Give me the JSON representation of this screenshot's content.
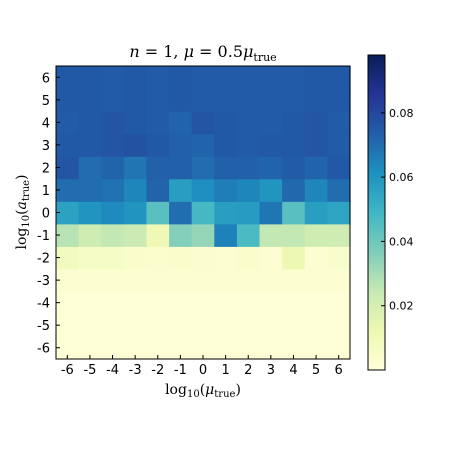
{
  "chart_data": {
    "type": "heatmap",
    "title_parts": {
      "n_sym": "n",
      "n_eq": " = 1,  ",
      "mu_sym": "μ",
      "mu_eq": " = 0.5",
      "mu_sym2": "μ",
      "mu_sub": "true"
    },
    "xlabel_parts": {
      "pre": "log",
      "sub10": "10",
      "open": "(",
      "sym": "μ",
      "sub": "true",
      "close": ")"
    },
    "ylabel_parts": {
      "pre": "log",
      "sub10": "10",
      "open": "(",
      "sym": "a",
      "sub": "true",
      "close": ")"
    },
    "x_categories": [
      "-6",
      "-5",
      "-4",
      "-3",
      "-2",
      "-1",
      "0",
      "1",
      "2",
      "3",
      "4",
      "5",
      "6"
    ],
    "y_categories": [
      "-6",
      "-5",
      "-4",
      "-3",
      "-2",
      "-1",
      "0",
      "1",
      "2",
      "3",
      "4",
      "5",
      "6"
    ],
    "colorbar": {
      "min": 0.0,
      "max": 0.098,
      "ticks": [
        0.02,
        0.04,
        0.06,
        0.08
      ],
      "tick_labels": [
        "0.02",
        "0.04",
        "0.06",
        "0.08"
      ],
      "colormap": "YlGnBu"
    },
    "values_rows_from_y_minus6_to_plus6": [
      [
        0.001,
        0.001,
        0.001,
        0.001,
        0.001,
        0.001,
        0.001,
        0.001,
        0.001,
        0.001,
        0.001,
        0.001,
        0.001
      ],
      [
        0.001,
        0.001,
        0.001,
        0.001,
        0.001,
        0.001,
        0.001,
        0.001,
        0.001,
        0.001,
        0.001,
        0.001,
        0.001
      ],
      [
        0.001,
        0.001,
        0.001,
        0.001,
        0.001,
        0.001,
        0.001,
        0.001,
        0.001,
        0.001,
        0.001,
        0.001,
        0.001
      ],
      [
        0.002,
        0.002,
        0.002,
        0.002,
        0.002,
        0.002,
        0.002,
        0.002,
        0.002,
        0.002,
        0.002,
        0.002,
        0.002
      ],
      [
        0.008,
        0.006,
        0.006,
        0.004,
        0.003,
        0.004,
        0.003,
        0.002,
        0.004,
        0.002,
        0.012,
        0.002,
        0.004
      ],
      [
        0.027,
        0.022,
        0.025,
        0.023,
        0.011,
        0.036,
        0.033,
        0.065,
        0.047,
        0.025,
        0.025,
        0.022,
        0.022
      ],
      [
        0.056,
        0.06,
        0.063,
        0.06,
        0.044,
        0.07,
        0.048,
        0.057,
        0.058,
        0.068,
        0.044,
        0.057,
        0.055
      ],
      [
        0.07,
        0.07,
        0.069,
        0.064,
        0.072,
        0.057,
        0.062,
        0.066,
        0.064,
        0.06,
        0.071,
        0.064,
        0.07
      ],
      [
        0.076,
        0.07,
        0.072,
        0.068,
        0.073,
        0.073,
        0.07,
        0.073,
        0.073,
        0.072,
        0.074,
        0.072,
        0.075
      ],
      [
        0.075,
        0.075,
        0.076,
        0.077,
        0.075,
        0.073,
        0.072,
        0.075,
        0.074,
        0.075,
        0.075,
        0.076,
        0.074
      ],
      [
        0.074,
        0.075,
        0.076,
        0.075,
        0.074,
        0.072,
        0.076,
        0.075,
        0.074,
        0.074,
        0.075,
        0.076,
        0.074
      ],
      [
        0.075,
        0.075,
        0.074,
        0.075,
        0.074,
        0.075,
        0.074,
        0.074,
        0.074,
        0.074,
        0.074,
        0.075,
        0.075
      ],
      [
        0.075,
        0.075,
        0.074,
        0.075,
        0.074,
        0.075,
        0.074,
        0.074,
        0.074,
        0.074,
        0.074,
        0.075,
        0.075
      ]
    ]
  }
}
